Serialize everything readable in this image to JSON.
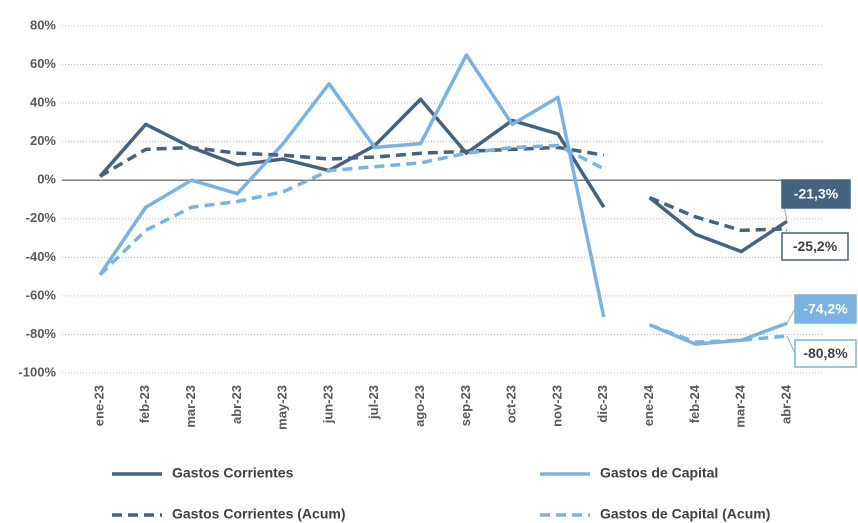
{
  "chart_data": {
    "type": "line",
    "categories": [
      "ene-23",
      "feb-23",
      "mar-23",
      "abr-23",
      "may-23",
      "jun-23",
      "jul-23",
      "ago-23",
      "sep-23",
      "oct-23",
      "nov-23",
      "dic-23",
      "ene-24",
      "feb-24",
      "mar-24",
      "abr-24"
    ],
    "line_breaks_after": [
      "dic-23"
    ],
    "series": [
      {
        "name": "Gastos Corrientes",
        "color": "#45627f",
        "dash": false,
        "values": [
          2,
          29,
          17,
          8,
          11,
          5,
          18,
          42,
          14,
          31,
          24,
          -14,
          -9,
          -28,
          -37,
          -21.3
        ],
        "value_labels": [
          null,
          null,
          null,
          null,
          null,
          null,
          null,
          null,
          null,
          null,
          null,
          null,
          null,
          null,
          null,
          "-21,3%"
        ]
      },
      {
        "name": "Gastos de Capital",
        "color": "#7ab3e0",
        "dash": false,
        "values": [
          -49,
          -14,
          0,
          -7,
          19,
          50,
          17,
          19,
          65,
          29,
          43,
          -71,
          -75,
          -85,
          -83,
          -74.2
        ],
        "value_labels": [
          null,
          null,
          null,
          null,
          null,
          null,
          null,
          null,
          null,
          null,
          null,
          null,
          null,
          null,
          null,
          "-74,2%"
        ]
      },
      {
        "name": "Gastos Corrientes (Acum)",
        "color": "#45627f",
        "dash": true,
        "values": [
          2,
          16,
          17,
          14,
          13,
          11,
          12,
          14,
          15,
          16,
          17,
          13,
          -9,
          -19,
          -26,
          -25.2
        ],
        "value_labels": [
          null,
          null,
          null,
          null,
          null,
          null,
          null,
          null,
          null,
          null,
          null,
          null,
          null,
          null,
          null,
          "-25,2%"
        ]
      },
      {
        "name": "Gastos de Capital (Acum)",
        "color": "#7ab3e0",
        "dash": true,
        "values": [
          -49,
          -26,
          -14,
          -11,
          -6,
          5,
          7,
          9,
          14,
          17,
          18,
          6,
          -75,
          -84,
          -83,
          -80.8
        ],
        "value_labels": [
          null,
          null,
          null,
          null,
          null,
          null,
          null,
          null,
          null,
          null,
          null,
          null,
          null,
          null,
          null,
          "-80,8%"
        ]
      }
    ],
    "ylim": [
      -100,
      80
    ],
    "yticks": [
      {
        "value": -100,
        "label": "-100%"
      },
      {
        "value": -80,
        "label": "-80%"
      },
      {
        "value": -60,
        "label": "-60%"
      },
      {
        "value": -40,
        "label": "-40%"
      },
      {
        "value": -20,
        "label": "-20%"
      },
      {
        "value": 0,
        "label": "0%"
      },
      {
        "value": 20,
        "label": "20%"
      },
      {
        "value": 40,
        "label": "40%"
      },
      {
        "value": 60,
        "label": "60%"
      },
      {
        "value": 80,
        "label": "80%"
      }
    ],
    "grid": true
  }
}
